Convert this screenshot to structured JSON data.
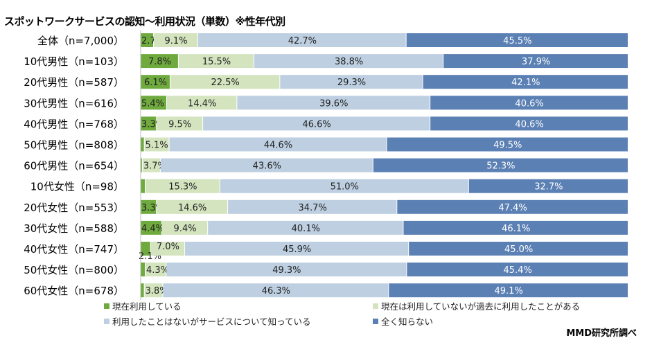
{
  "chart_data": {
    "type": "bar",
    "orientation": "horizontal",
    "stacked": true,
    "percent": true,
    "title": "スポットワークサービスの認知～利用状況（単数）※性年代別",
    "categories": [
      "全体（n=7,000）",
      "10代男性（n=103）",
      "20代男性（n=587）",
      "30代男性（n=616）",
      "40代男性（n=768）",
      "50代男性（n=808）",
      "60代男性（n=654）",
      "10代女性（n=98）",
      "20代女性（n=553）",
      "30代女性（n=588）",
      "40代女性（n=747）",
      "50代女性（n=800）",
      "60代女性（n=678）"
    ],
    "series": [
      {
        "name": "現在利用している",
        "color": "#6faa3f",
        "values": [
          2.7,
          7.8,
          6.1,
          5.4,
          3.3,
          0.8,
          0.4,
          1.0,
          3.3,
          4.4,
          2.1,
          1.0,
          0.8
        ],
        "labels": [
          "2.7%",
          "7.8%",
          "6.1%",
          "5.4%",
          "3.3%",
          "",
          "",
          "",
          "3.3%",
          "4.4%",
          "2.1%",
          "",
          ""
        ]
      },
      {
        "name": "現在は利用していないが過去に利用したことがある",
        "color": "#d4e4bf",
        "values": [
          9.1,
          15.5,
          22.5,
          14.4,
          9.5,
          5.1,
          3.7,
          15.3,
          14.6,
          9.4,
          7.0,
          4.3,
          3.8
        ],
        "labels": [
          "9.1%",
          "15.5%",
          "22.5%",
          "14.4%",
          "9.5%",
          "5.1%",
          "3.7%",
          "15.3%",
          "14.6%",
          "9.4%",
          "7.0%",
          "4.3%",
          "3.8%"
        ]
      },
      {
        "name": "利用したことはないがサービスについて知っている",
        "color": "#bdcfe1",
        "values": [
          42.7,
          38.8,
          29.3,
          39.6,
          46.6,
          44.6,
          43.6,
          51.0,
          34.7,
          40.1,
          45.9,
          49.3,
          46.3
        ],
        "labels": [
          "42.7%",
          "38.8%",
          "29.3%",
          "39.6%",
          "46.6%",
          "44.6%",
          "43.6%",
          "51.0%",
          "34.7%",
          "40.1%",
          "45.9%",
          "49.3%",
          "46.3%"
        ]
      },
      {
        "name": "全く知らない",
        "color": "#5b80b4",
        "values": [
          45.5,
          37.9,
          42.1,
          40.6,
          40.6,
          49.5,
          52.3,
          32.7,
          47.4,
          46.1,
          45.0,
          45.4,
          49.1
        ],
        "labels": [
          "45.5%",
          "37.9%",
          "42.1%",
          "40.6%",
          "40.6%",
          "49.5%",
          "52.3%",
          "32.7%",
          "47.4%",
          "46.1%",
          "45.0%",
          "45.4%",
          "49.1%"
        ]
      }
    ],
    "xlim": [
      0,
      100
    ],
    "grid": false,
    "legend_position": "bottom"
  },
  "credit": "MMD研究所調べ"
}
